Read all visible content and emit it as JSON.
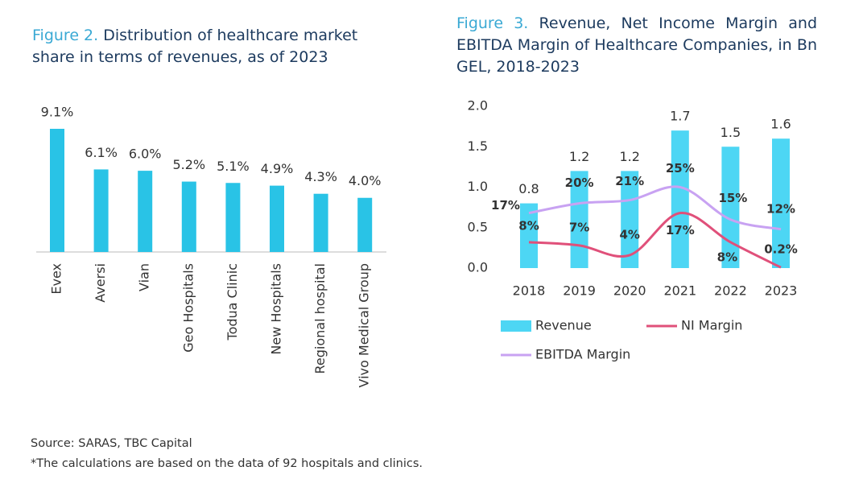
{
  "chart_data": [
    {
      "type": "bar",
      "figure_label": "Figure 2.",
      "title": "Distribution of healthcare market share in terms of revenues, as of 2023",
      "categories": [
        "Evex",
        "Aversi",
        "Vian",
        "Geo Hospitals",
        "Todua Clinic",
        "New Hospitals",
        "Regional hospital",
        "Vivo Medical Group"
      ],
      "values": [
        9.1,
        6.1,
        6.0,
        5.2,
        5.1,
        4.9,
        4.3,
        4.0
      ],
      "value_labels": [
        "9.1%",
        "6.1%",
        "6.0%",
        "5.2%",
        "5.1%",
        "4.9%",
        "4.3%",
        "4.0%"
      ],
      "color": "#29c3e6"
    },
    {
      "type": "combo",
      "figure_label": "Figure 3.",
      "title": "Revenue, Net Income Margin and EBITDA Margin of Healthcare Companies, in Bn GEL, 2018-2023",
      "categories": [
        "2018",
        "2019",
        "2020",
        "2021",
        "2022",
        "2023"
      ],
      "ylim": [
        0,
        2
      ],
      "yticks": [
        {
          "value": 0,
          "label": "0.0"
        },
        0.5,
        {
          "value": 1,
          "label": "1.0"
        },
        1.5,
        {
          "value": 2,
          "label": "2.0"
        }
      ],
      "y2lim": [
        0,
        50
      ],
      "legend": "bottom",
      "series": [
        {
          "name": "Revenue",
          "type": "bar",
          "color": "#4dd6f4",
          "values": [
            0.8,
            1.2,
            1.2,
            1.7,
            1.5,
            1.6
          ]
        },
        {
          "name": "NI Margin",
          "type": "line",
          "axis": "y2",
          "color": "#e0507a",
          "values": [
            8,
            7,
            4,
            17,
            8,
            0.2
          ],
          "value_labels": [
            "8%",
            "7%",
            "4%",
            "17%",
            "8%",
            "0.2%"
          ]
        },
        {
          "name": "EBITDA Margin",
          "type": "line",
          "axis": "y2",
          "color": "#c8a2f2",
          "values": [
            17,
            20,
            21,
            25,
            15,
            12
          ],
          "value_labels": [
            "17%",
            "20%",
            "21%",
            "25%",
            "15%",
            "12%"
          ]
        }
      ]
    }
  ],
  "source": "Source: SARAS, TBC Capital",
  "note": "*The calculations are based on the data of 92 hospitals and clinics."
}
